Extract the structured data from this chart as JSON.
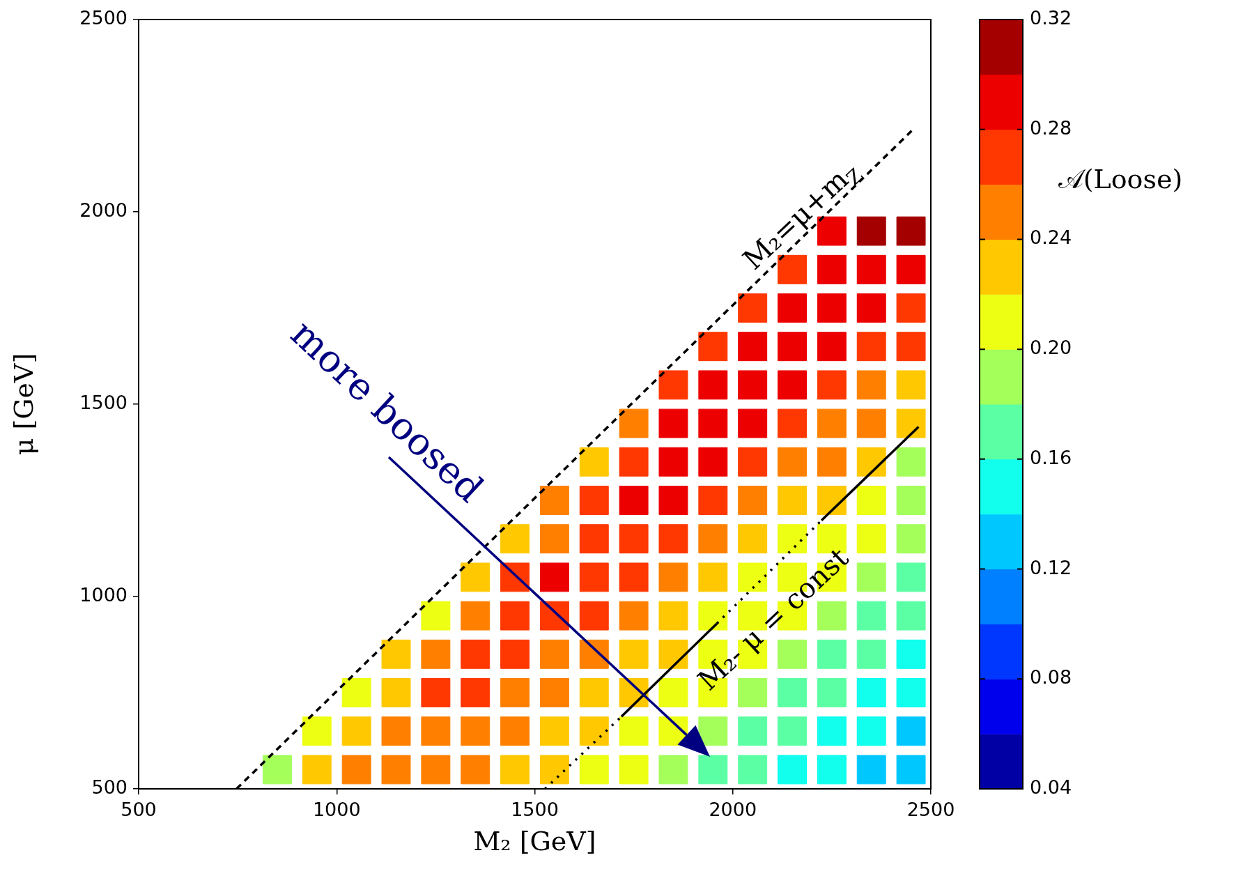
{
  "chart_data": {
    "type": "scatter",
    "xlabel": "M₂ [GeV]",
    "ylabel": "μ [GeV]",
    "clabel": "𝒜(Loose)",
    "xlim": [
      500,
      2500
    ],
    "ylim": [
      500,
      2500
    ],
    "xticks": [
      500,
      1000,
      1500,
      2000,
      2500
    ],
    "yticks": [
      500,
      1000,
      1500,
      2000,
      2500
    ],
    "clim": [
      0.04,
      0.32
    ],
    "cticks": [
      0.04,
      0.08,
      0.12,
      0.16,
      {
        "value": 0.2,
        "label": "0.20"
      },
      0.24,
      0.28,
      0.32
    ],
    "marker": "square",
    "series": [
      {
        "x": [
          850,
          950,
          1050,
          1150,
          1250,
          1350,
          1450,
          1550,
          1650,
          1750,
          1850,
          1950,
          2050,
          2150,
          2250,
          2350,
          2450,
          950,
          1050,
          1150,
          1250,
          1350,
          1450,
          1550,
          1650,
          1750,
          1850,
          1950,
          2050,
          2150,
          2250,
          2350,
          2450,
          1050,
          1150,
          1250,
          1350,
          1450,
          1550,
          1650,
          1750,
          1850,
          1950,
          2050,
          2150,
          2250,
          2350,
          2450,
          1150,
          1250,
          1350,
          1450,
          1550,
          1650,
          1750,
          1850,
          1950,
          2050,
          2150,
          2250,
          2350,
          2450,
          1250,
          1350,
          1450,
          1550,
          1650,
          1750,
          1850,
          1950,
          2050,
          2150,
          2250,
          2350,
          2450,
          1350,
          1450,
          1550,
          1650,
          1750,
          1850,
          1950,
          2050,
          2150,
          2250,
          2350,
          2450,
          1450,
          1550,
          1650,
          1750,
          1850,
          1950,
          2050,
          2150,
          2250,
          2350,
          2450,
          1550,
          1650,
          1750,
          1850,
          1950,
          2050,
          2150,
          2250,
          2350,
          2450,
          1650,
          1750,
          1850,
          1950,
          2050,
          2150,
          2250,
          2350,
          2450,
          1750,
          1850,
          1950,
          2050,
          2150,
          2250,
          2350,
          2450,
          1850,
          1950,
          2050,
          2150,
          2250,
          2350,
          2450,
          1950,
          2050,
          2150,
          2250,
          2350,
          2450,
          2050,
          2150,
          2250,
          2350,
          2450,
          2150,
          2250,
          2350,
          2450,
          2250,
          2350,
          2450
        ],
        "values": [
          550,
          550,
          550,
          550,
          550,
          550,
          550,
          550,
          550,
          550,
          550,
          550,
          550,
          550,
          550,
          550,
          550,
          650,
          650,
          650,
          650,
          650,
          650,
          650,
          650,
          650,
          650,
          650,
          650,
          650,
          650,
          650,
          650,
          750,
          750,
          750,
          750,
          750,
          750,
          750,
          750,
          750,
          750,
          750,
          750,
          750,
          750,
          750,
          850,
          850,
          850,
          850,
          850,
          850,
          850,
          850,
          850,
          850,
          850,
          850,
          850,
          850,
          950,
          950,
          950,
          950,
          950,
          950,
          950,
          950,
          950,
          950,
          950,
          950,
          950,
          1050,
          1050,
          1050,
          1050,
          1050,
          1050,
          1050,
          1050,
          1050,
          1050,
          1050,
          1050,
          1150,
          1150,
          1150,
          1150,
          1150,
          1150,
          1150,
          1150,
          1150,
          1150,
          1150,
          1250,
          1250,
          1250,
          1250,
          1250,
          1250,
          1250,
          1250,
          1250,
          1250,
          1350,
          1350,
          1350,
          1350,
          1350,
          1350,
          1350,
          1350,
          1350,
          1450,
          1450,
          1450,
          1450,
          1450,
          1450,
          1450,
          1450,
          1550,
          1550,
          1550,
          1550,
          1550,
          1550,
          1550,
          1650,
          1650,
          1650,
          1650,
          1650,
          1650,
          1750,
          1750,
          1750,
          1750,
          1750,
          1850,
          1850,
          1850,
          1850,
          1950,
          1950,
          1950
        ],
        "cvalues": [
          0.19,
          0.23,
          0.25,
          0.25,
          0.25,
          0.25,
          0.23,
          0.23,
          0.21,
          0.21,
          0.19,
          0.17,
          0.17,
          0.15,
          0.15,
          0.13,
          0.13,
          0.21,
          0.23,
          0.25,
          0.25,
          0.25,
          0.25,
          0.23,
          0.23,
          0.21,
          0.21,
          0.19,
          0.17,
          0.17,
          0.15,
          0.15,
          0.13,
          0.21,
          0.23,
          0.27,
          0.27,
          0.25,
          0.25,
          0.23,
          0.23,
          0.21,
          0.21,
          0.19,
          0.17,
          0.17,
          0.15,
          0.15,
          0.23,
          0.25,
          0.27,
          0.27,
          0.25,
          0.25,
          0.23,
          0.23,
          0.21,
          0.21,
          0.19,
          0.17,
          0.17,
          0.15,
          0.21,
          0.25,
          0.27,
          0.27,
          0.27,
          0.25,
          0.23,
          0.21,
          0.21,
          0.21,
          0.19,
          0.17,
          0.17,
          0.23,
          0.27,
          0.29,
          0.27,
          0.27,
          0.25,
          0.23,
          0.21,
          0.21,
          0.21,
          0.19,
          0.17,
          0.23,
          0.25,
          0.27,
          0.27,
          0.27,
          0.25,
          0.23,
          0.21,
          0.21,
          0.21,
          0.19,
          0.25,
          0.27,
          0.29,
          0.29,
          0.27,
          0.25,
          0.23,
          0.23,
          0.21,
          0.19,
          0.23,
          0.27,
          0.29,
          0.29,
          0.27,
          0.25,
          0.25,
          0.23,
          0.19,
          0.25,
          0.29,
          0.29,
          0.29,
          0.27,
          0.25,
          0.25,
          0.23,
          0.27,
          0.29,
          0.29,
          0.29,
          0.27,
          0.25,
          0.23,
          0.27,
          0.29,
          0.29,
          0.29,
          0.27,
          0.27,
          0.27,
          0.29,
          0.29,
          0.29,
          0.27,
          0.27,
          0.29,
          0.29,
          0.29,
          0.29,
          0.31,
          0.31
        ],
        "colors": [
          "#a4ff5b",
          "#ffc800",
          "#ff8000",
          "#ff8000",
          "#ff8000",
          "#ff8000",
          "#ffc800",
          "#ffc800",
          "#edff12",
          "#edff12",
          "#a4ff5b",
          "#5bffa4",
          "#5bffa4",
          "#00ffed",
          "#00ffed",
          "#00c8ff",
          "#00c8ff",
          "#edff12",
          "#ffc800",
          "#ff8000",
          "#ff8000",
          "#ff8000",
          "#ff8000",
          "#ffc800",
          "#ffc800",
          "#edff12",
          "#edff12",
          "#a4ff5b",
          "#5bffa4",
          "#5bffa4",
          "#00ffed",
          "#00ffed",
          "#00c8ff",
          "#edff12",
          "#ffc800",
          "#ff3700",
          "#ff3700",
          "#ff8000",
          "#ff8000",
          "#ffc800",
          "#ffc800",
          "#edff12",
          "#edff12",
          "#a4ff5b",
          "#5bffa4",
          "#5bffa4",
          "#00ffed",
          "#00ffed",
          "#ffc800",
          "#ff8000",
          "#ff3700",
          "#ff3700",
          "#ff8000",
          "#ff8000",
          "#ffc800",
          "#ffc800",
          "#edff12",
          "#edff12",
          "#a4ff5b",
          "#5bffa4",
          "#5bffa4",
          "#00ffed",
          "#edff12",
          "#ff8000",
          "#ff3700",
          "#ff3700",
          "#ff3700",
          "#ff8000",
          "#ffc800",
          "#edff12",
          "#edff12",
          "#edff12",
          "#a4ff5b",
          "#5bffa4",
          "#5bffa4",
          "#ffc800",
          "#ff3700",
          "#ed0000",
          "#ff3700",
          "#ff3700",
          "#ff8000",
          "#ffc800",
          "#edff12",
          "#edff12",
          "#edff12",
          "#a4ff5b",
          "#5bffa4",
          "#ffc800",
          "#ff8000",
          "#ff3700",
          "#ff3700",
          "#ff3700",
          "#ff8000",
          "#ffc800",
          "#edff12",
          "#edff12",
          "#edff12",
          "#a4ff5b",
          "#ff8000",
          "#ff3700",
          "#ed0000",
          "#ed0000",
          "#ff3700",
          "#ff8000",
          "#ffc800",
          "#ffc800",
          "#edff12",
          "#a4ff5b",
          "#ffc800",
          "#ff3700",
          "#ed0000",
          "#ed0000",
          "#ff3700",
          "#ff8000",
          "#ff8000",
          "#ffc800",
          "#a4ff5b",
          "#ff8000",
          "#ed0000",
          "#ed0000",
          "#ed0000",
          "#ff3700",
          "#ff8000",
          "#ff8000",
          "#ffc800",
          "#ff3700",
          "#ed0000",
          "#ed0000",
          "#ed0000",
          "#ff3700",
          "#ff8000",
          "#ffc800",
          "#ff3700",
          "#ed0000",
          "#ed0000",
          "#ed0000",
          "#ff3700",
          "#ff3700",
          "#ff3700",
          "#ed0000",
          "#ed0000",
          "#ed0000",
          "#ff3700",
          "#ff3700",
          "#ed0000",
          "#ed0000",
          "#ed0000",
          "#ed0000",
          "#a40000",
          "#a40000"
        ]
      },
      {
        "type": "line",
        "x": [
          747,
          2454
        ],
        "values": [
          500,
          2213
        ],
        "color": "#000000",
        "line_style": "dashed",
        "marker": "none"
      },
      {
        "type": "line",
        "x": [
          1526,
          1719
        ],
        "values": [
          500,
          688
        ],
        "color": "#000000",
        "line_style": "dotted",
        "marker": "none"
      },
      {
        "type": "line",
        "x": [
          1719,
          1960
        ],
        "values": [
          688,
          930
        ],
        "color": "#000000",
        "line_style": "solid",
        "marker": "none"
      },
      {
        "type": "line",
        "x": [
          1960,
          2224
        ],
        "values": [
          930,
          1198
        ],
        "color": "#000000",
        "line_style": "dotted",
        "marker": "none"
      },
      {
        "type": "line",
        "x": [
          2224,
          2469
        ],
        "values": [
          1198,
          1441
        ],
        "color": "#000000",
        "line_style": "solid",
        "marker": "none"
      }
    ],
    "annotations": [
      "M₂=μ+m$_{Z}$",
      "M₂- μ = const",
      "more boosed"
    ]
  }
}
